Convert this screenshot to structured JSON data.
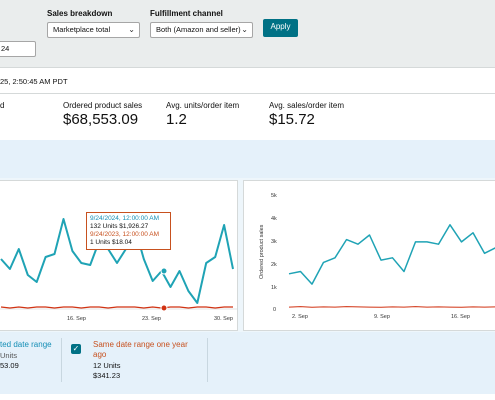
{
  "filters": {
    "sales_breakdown_label": "Sales breakdown",
    "sales_breakdown_value": "Marketplace total",
    "fulfillment_label": "Fulfillment channel",
    "fulfillment_value": "Both (Amazon and seller)",
    "apply_label": "Apply",
    "date_fragment": "24"
  },
  "updated_text": "25, 2:50:45 AM PDT",
  "metrics": {
    "first_label_fragment": "d",
    "ordered_sales_label": "Ordered product sales",
    "ordered_sales_value": "$68,553.09",
    "units_per_item_label": "Avg. units/order item",
    "units_per_item_value": "1.2",
    "sales_per_item_label": "Avg. sales/order item",
    "sales_per_item_value": "$15.72"
  },
  "left_chart": {
    "x_ticks": [
      "16. Sep",
      "23. Sep",
      "30. Sep"
    ],
    "tooltip": {
      "line1": "9/24/2024, 12:00:00 AM",
      "line2": "132 Units $1,926.27",
      "line3": "9/24/2023, 12:00:00 AM",
      "line4": "1 Units $18.04"
    }
  },
  "right_chart": {
    "y_axis_label": "Ordered product sales",
    "y_ticks": [
      "5k",
      "4k",
      "3k",
      "2k",
      "1k",
      "0"
    ],
    "x_ticks": [
      "2. Sep",
      "9. Sep",
      "16. Sep"
    ]
  },
  "legend": {
    "current_line1": "ted date range",
    "current_units": "Units",
    "current_sales": "53.09",
    "prior_label_line1": "Same date range one year",
    "prior_label_line2": "ago",
    "prior_units": "12 Units",
    "prior_sales": "$341.23",
    "checkbox_glyph": "✓"
  },
  "colors": {
    "current_series": "#1fa3b5",
    "prior_series": "#d13212",
    "accent": "#007185"
  },
  "chart_data": [
    {
      "type": "line",
      "title": "",
      "x_ticks": [
        "16. Sep",
        "23. Sep",
        "30. Sep"
      ],
      "series": [
        {
          "values": [
            258,
            268,
            248,
            274,
            281,
            256,
            253,
            218,
            250,
            262,
            264,
            240,
            248,
            262,
            248,
            226,
            258,
            280,
            270,
            286,
            270,
            290,
            302,
            262,
            256,
            224,
            268
          ]
        },
        {
          "values": [
            306,
            307,
            306,
            307,
            306,
            306,
            307,
            306,
            306,
            307,
            306,
            306,
            307,
            306,
            306,
            306,
            307,
            306,
            307,
            306,
            306,
            307,
            306,
            306,
            307,
            306,
            306
          ]
        }
      ]
    },
    {
      "type": "line",
      "title": "",
      "ylabel": "Ordered product sales",
      "y_ticks": [
        "5k",
        "4k",
        "3k",
        "2k",
        "1k",
        "0"
      ],
      "ylim": [
        0,
        5000
      ],
      "x_ticks": [
        "2. Sep",
        "9. Sep",
        "16. Sep"
      ],
      "series": [
        {
          "values": [
            1500,
            1600,
            1050,
            2000,
            2200,
            3000,
            2800,
            3200,
            2100,
            2200,
            1600,
            2900,
            2900,
            2800,
            3650,
            2900,
            3300,
            2400,
            2650
          ]
        },
        {
          "values": [
            40,
            60,
            30,
            50,
            40,
            60,
            50,
            40,
            30,
            50,
            40,
            60,
            40,
            50,
            40,
            30,
            50,
            40,
            50
          ]
        }
      ]
    }
  ]
}
